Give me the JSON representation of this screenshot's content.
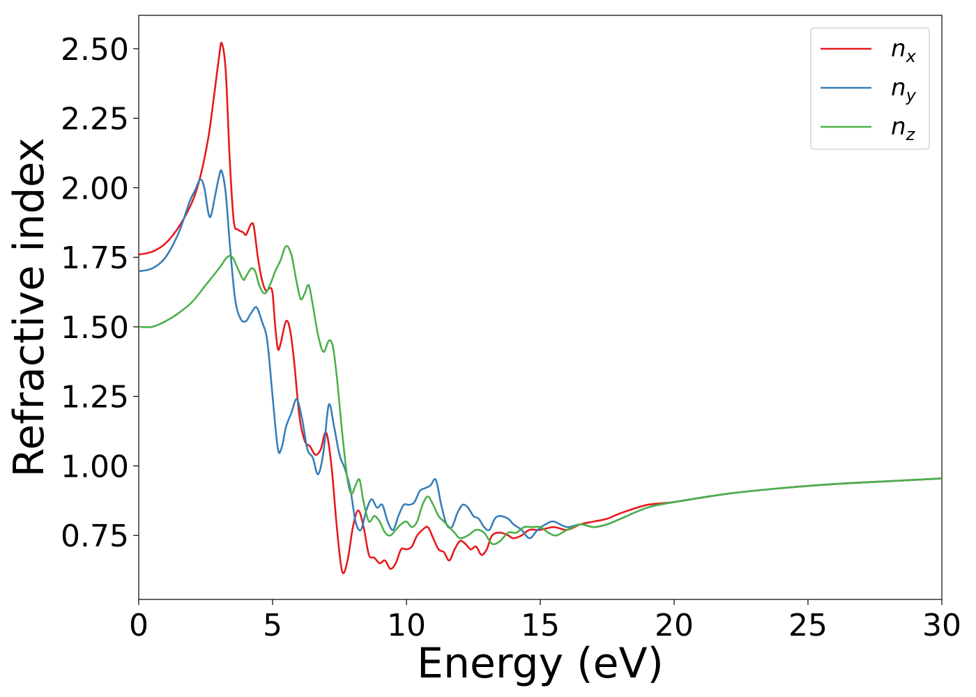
{
  "chart_data": {
    "type": "line",
    "title": "",
    "xlabel": "Energy (eV)",
    "ylabel": "Refractive index",
    "xlim": [
      0,
      30
    ],
    "ylim": [
      0.52,
      2.62
    ],
    "xticks": [
      0,
      5,
      10,
      15,
      20,
      25,
      30
    ],
    "yticks": [
      0.75,
      1.0,
      1.25,
      1.5,
      1.75,
      2.0,
      2.25,
      2.5
    ],
    "xtick_labels": [
      "0",
      "5",
      "10",
      "15",
      "20",
      "25",
      "30"
    ],
    "ytick_labels": [
      "0.75",
      "1.00",
      "1.25",
      "1.50",
      "1.75",
      "2.00",
      "2.25",
      "2.50"
    ],
    "grid": false,
    "legend_position": "top-right",
    "series": [
      {
        "name": "n",
        "subscript": "x",
        "color": "#e41a1c",
        "points": [
          [
            0,
            1.76
          ],
          [
            0.5,
            1.77
          ],
          [
            1,
            1.8
          ],
          [
            1.5,
            1.86
          ],
          [
            2,
            1.95
          ],
          [
            2.3,
            2.04
          ],
          [
            2.6,
            2.18
          ],
          [
            2.8,
            2.32
          ],
          [
            3.0,
            2.47
          ],
          [
            3.1,
            2.52
          ],
          [
            3.25,
            2.42
          ],
          [
            3.4,
            2.1
          ],
          [
            3.55,
            1.88
          ],
          [
            3.7,
            1.85
          ],
          [
            3.9,
            1.84
          ],
          [
            4.0,
            1.83
          ],
          [
            4.1,
            1.85
          ],
          [
            4.2,
            1.87
          ],
          [
            4.3,
            1.86
          ],
          [
            4.45,
            1.75
          ],
          [
            4.6,
            1.67
          ],
          [
            4.75,
            1.63
          ],
          [
            4.9,
            1.64
          ],
          [
            5.0,
            1.62
          ],
          [
            5.1,
            1.5
          ],
          [
            5.2,
            1.42
          ],
          [
            5.3,
            1.44
          ],
          [
            5.5,
            1.52
          ],
          [
            5.65,
            1.49
          ],
          [
            5.8,
            1.38
          ],
          [
            6.0,
            1.18
          ],
          [
            6.2,
            1.09
          ],
          [
            6.4,
            1.07
          ],
          [
            6.6,
            1.04
          ],
          [
            6.8,
            1.06
          ],
          [
            7.0,
            1.12
          ],
          [
            7.2,
            1.0
          ],
          [
            7.4,
            0.78
          ],
          [
            7.6,
            0.62
          ],
          [
            7.8,
            0.66
          ],
          [
            8.0,
            0.78
          ],
          [
            8.2,
            0.84
          ],
          [
            8.4,
            0.78
          ],
          [
            8.6,
            0.68
          ],
          [
            8.8,
            0.67
          ],
          [
            9.0,
            0.65
          ],
          [
            9.2,
            0.66
          ],
          [
            9.4,
            0.63
          ],
          [
            9.6,
            0.65
          ],
          [
            9.8,
            0.7
          ],
          [
            10.0,
            0.7
          ],
          [
            10.2,
            0.71
          ],
          [
            10.4,
            0.75
          ],
          [
            10.6,
            0.77
          ],
          [
            10.8,
            0.78
          ],
          [
            11.0,
            0.74
          ],
          [
            11.2,
            0.7
          ],
          [
            11.4,
            0.69
          ],
          [
            11.6,
            0.66
          ],
          [
            11.8,
            0.7
          ],
          [
            12.0,
            0.73
          ],
          [
            12.2,
            0.72
          ],
          [
            12.4,
            0.7
          ],
          [
            12.6,
            0.71
          ],
          [
            12.8,
            0.68
          ],
          [
            13.0,
            0.7
          ],
          [
            13.2,
            0.75
          ],
          [
            13.5,
            0.76
          ],
          [
            13.8,
            0.75
          ],
          [
            14.0,
            0.74
          ],
          [
            14.3,
            0.75
          ],
          [
            14.6,
            0.77
          ],
          [
            15.0,
            0.77
          ],
          [
            15.5,
            0.78
          ],
          [
            16.0,
            0.77
          ],
          [
            16.5,
            0.79
          ],
          [
            17.0,
            0.8
          ],
          [
            17.5,
            0.81
          ],
          [
            18.0,
            0.83
          ],
          [
            19.0,
            0.86
          ],
          [
            20.0,
            0.87
          ],
          [
            22.0,
            0.9
          ],
          [
            24.0,
            0.92
          ],
          [
            26.0,
            0.935
          ],
          [
            28.0,
            0.945
          ],
          [
            30.0,
            0.955
          ]
        ]
      },
      {
        "name": "n",
        "subscript": "y",
        "color": "#377eb8",
        "points": [
          [
            0,
            1.7
          ],
          [
            0.5,
            1.71
          ],
          [
            1,
            1.75
          ],
          [
            1.5,
            1.84
          ],
          [
            1.9,
            1.95
          ],
          [
            2.1,
            1.99
          ],
          [
            2.3,
            2.03
          ],
          [
            2.45,
            2.0
          ],
          [
            2.6,
            1.91
          ],
          [
            2.7,
            1.9
          ],
          [
            2.85,
            1.97
          ],
          [
            3.0,
            2.04
          ],
          [
            3.1,
            2.06
          ],
          [
            3.25,
            1.98
          ],
          [
            3.4,
            1.8
          ],
          [
            3.6,
            1.6
          ],
          [
            3.8,
            1.53
          ],
          [
            4.0,
            1.52
          ],
          [
            4.2,
            1.55
          ],
          [
            4.4,
            1.57
          ],
          [
            4.6,
            1.52
          ],
          [
            4.8,
            1.45
          ],
          [
            5.0,
            1.25
          ],
          [
            5.2,
            1.06
          ],
          [
            5.35,
            1.07
          ],
          [
            5.5,
            1.14
          ],
          [
            5.7,
            1.19
          ],
          [
            5.9,
            1.24
          ],
          [
            6.1,
            1.17
          ],
          [
            6.3,
            1.06
          ],
          [
            6.5,
            1.03
          ],
          [
            6.7,
            0.97
          ],
          [
            6.9,
            1.05
          ],
          [
            7.1,
            1.22
          ],
          [
            7.3,
            1.14
          ],
          [
            7.5,
            1.04
          ],
          [
            7.7,
            0.99
          ],
          [
            7.9,
            0.92
          ],
          [
            8.1,
            0.8
          ],
          [
            8.3,
            0.77
          ],
          [
            8.5,
            0.84
          ],
          [
            8.7,
            0.88
          ],
          [
            8.9,
            0.85
          ],
          [
            9.1,
            0.86
          ],
          [
            9.3,
            0.8
          ],
          [
            9.5,
            0.77
          ],
          [
            9.7,
            0.82
          ],
          [
            9.9,
            0.86
          ],
          [
            10.1,
            0.86
          ],
          [
            10.3,
            0.87
          ],
          [
            10.5,
            0.91
          ],
          [
            10.7,
            0.92
          ],
          [
            10.9,
            0.93
          ],
          [
            11.1,
            0.95
          ],
          [
            11.3,
            0.86
          ],
          [
            11.5,
            0.79
          ],
          [
            11.7,
            0.78
          ],
          [
            11.9,
            0.83
          ],
          [
            12.1,
            0.86
          ],
          [
            12.3,
            0.85
          ],
          [
            12.5,
            0.82
          ],
          [
            12.7,
            0.81
          ],
          [
            12.9,
            0.78
          ],
          [
            13.1,
            0.77
          ],
          [
            13.3,
            0.81
          ],
          [
            13.5,
            0.82
          ],
          [
            13.8,
            0.81
          ],
          [
            14.0,
            0.79
          ],
          [
            14.3,
            0.77
          ],
          [
            14.6,
            0.74
          ],
          [
            14.9,
            0.77
          ],
          [
            15.2,
            0.79
          ],
          [
            15.5,
            0.8
          ],
          [
            16.0,
            0.78
          ],
          [
            16.5,
            0.79
          ],
          [
            17.0,
            0.78
          ],
          [
            17.5,
            0.79
          ],
          [
            18.0,
            0.81
          ],
          [
            19.0,
            0.85
          ],
          [
            20.0,
            0.87
          ],
          [
            22.0,
            0.9
          ],
          [
            24.0,
            0.92
          ],
          [
            26.0,
            0.935
          ],
          [
            28.0,
            0.945
          ],
          [
            30.0,
            0.955
          ]
        ]
      },
      {
        "name": "n",
        "subscript": "z",
        "color": "#4daf4a",
        "points": [
          [
            0,
            1.5
          ],
          [
            0.5,
            1.5
          ],
          [
            1,
            1.52
          ],
          [
            1.5,
            1.55
          ],
          [
            2.0,
            1.59
          ],
          [
            2.5,
            1.65
          ],
          [
            3.0,
            1.71
          ],
          [
            3.3,
            1.75
          ],
          [
            3.5,
            1.75
          ],
          [
            3.7,
            1.71
          ],
          [
            3.9,
            1.67
          ],
          [
            4.0,
            1.68
          ],
          [
            4.2,
            1.71
          ],
          [
            4.35,
            1.7
          ],
          [
            4.5,
            1.65
          ],
          [
            4.7,
            1.62
          ],
          [
            4.9,
            1.65
          ],
          [
            5.1,
            1.7
          ],
          [
            5.3,
            1.74
          ],
          [
            5.5,
            1.79
          ],
          [
            5.7,
            1.76
          ],
          [
            5.9,
            1.66
          ],
          [
            6.05,
            1.6
          ],
          [
            6.2,
            1.62
          ],
          [
            6.35,
            1.65
          ],
          [
            6.5,
            1.58
          ],
          [
            6.7,
            1.47
          ],
          [
            6.9,
            1.41
          ],
          [
            7.1,
            1.45
          ],
          [
            7.25,
            1.43
          ],
          [
            7.4,
            1.32
          ],
          [
            7.6,
            1.12
          ],
          [
            7.8,
            0.95
          ],
          [
            7.95,
            0.9
          ],
          [
            8.1,
            0.93
          ],
          [
            8.25,
            0.95
          ],
          [
            8.4,
            0.87
          ],
          [
            8.6,
            0.8
          ],
          [
            8.8,
            0.82
          ],
          [
            9.0,
            0.8
          ],
          [
            9.2,
            0.76
          ],
          [
            9.4,
            0.75
          ],
          [
            9.6,
            0.77
          ],
          [
            9.8,
            0.79
          ],
          [
            10.0,
            0.8
          ],
          [
            10.2,
            0.78
          ],
          [
            10.4,
            0.8
          ],
          [
            10.6,
            0.86
          ],
          [
            10.8,
            0.89
          ],
          [
            11.0,
            0.86
          ],
          [
            11.2,
            0.82
          ],
          [
            11.4,
            0.8
          ],
          [
            11.6,
            0.78
          ],
          [
            11.8,
            0.76
          ],
          [
            12.0,
            0.74
          ],
          [
            12.3,
            0.75
          ],
          [
            12.6,
            0.77
          ],
          [
            12.9,
            0.76
          ],
          [
            13.2,
            0.72
          ],
          [
            13.5,
            0.73
          ],
          [
            13.8,
            0.76
          ],
          [
            14.1,
            0.76
          ],
          [
            14.4,
            0.78
          ],
          [
            14.7,
            0.78
          ],
          [
            15.0,
            0.78
          ],
          [
            15.3,
            0.76
          ],
          [
            15.6,
            0.75
          ],
          [
            16.0,
            0.77
          ],
          [
            16.5,
            0.79
          ],
          [
            17.0,
            0.78
          ],
          [
            17.5,
            0.79
          ],
          [
            18.0,
            0.81
          ],
          [
            19.0,
            0.85
          ],
          [
            20.0,
            0.87
          ],
          [
            22.0,
            0.9
          ],
          [
            24.0,
            0.92
          ],
          [
            26.0,
            0.935
          ],
          [
            28.0,
            0.945
          ],
          [
            30.0,
            0.955
          ]
        ]
      }
    ]
  }
}
